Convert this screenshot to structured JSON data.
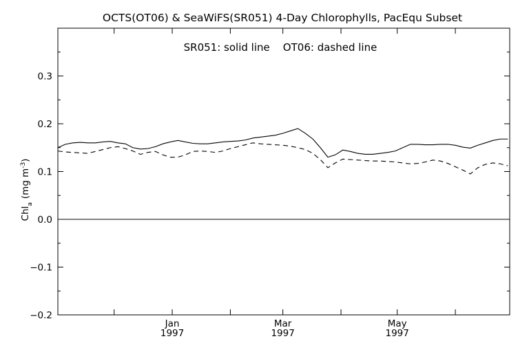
{
  "chart_data": {
    "type": "line",
    "title": "OCTS(OT06) & SeaWiFS(SR051) 4-Day Chlorophylls, PacEqu Subset",
    "legend_text": "SR051: solid line    OT06: dashed line",
    "legend_placement": "top-center",
    "ylabel_main": "Chl",
    "ylabel_sub": "a",
    "ylabel_units": "(mg m",
    "ylabel_units_sup": "-3",
    "ylabel_units_close": ")",
    "ylim": [
      -0.2,
      0.4
    ],
    "yticks": [
      {
        "value": -0.2,
        "label": "−0.2"
      },
      {
        "value": -0.1,
        "label": "−0.1"
      },
      {
        "value": 0.0,
        "label": "0.0"
      },
      {
        "value": 0.1,
        "label": "0.1"
      },
      {
        "value": 0.2,
        "label": "0.2"
      },
      {
        "value": 0.3,
        "label": "0.3"
      }
    ],
    "x_range": [
      "1996-11-01",
      "1997-06-30"
    ],
    "x_minor_ticks": [
      "1996-12-01",
      "1997-01-01",
      "1997-02-01",
      "1997-03-01",
      "1997-04-01",
      "1997-05-01",
      "1997-06-01"
    ],
    "x_labels": [
      {
        "date": "1997-01-01",
        "month": "Jan",
        "year": "1997"
      },
      {
        "date": "1997-03-01",
        "month": "Mar",
        "year": "1997"
      },
      {
        "date": "1997-05-01",
        "month": "May",
        "year": "1997"
      }
    ],
    "zero_line": true,
    "grid": false,
    "x": [
      "1996-11-01",
      "1996-11-05",
      "1996-11-09",
      "1996-11-13",
      "1996-11-17",
      "1996-11-21",
      "1996-11-25",
      "1996-11-29",
      "1996-12-03",
      "1996-12-07",
      "1996-12-11",
      "1996-12-15",
      "1996-12-19",
      "1996-12-23",
      "1996-12-27",
      "1996-12-31",
      "1997-01-04",
      "1997-01-08",
      "1997-01-12",
      "1997-01-16",
      "1997-01-20",
      "1997-01-24",
      "1997-01-28",
      "1997-02-01",
      "1997-02-05",
      "1997-02-09",
      "1997-02-13",
      "1997-02-17",
      "1997-02-21",
      "1997-02-25",
      "1997-03-01",
      "1997-03-05",
      "1997-03-09",
      "1997-03-13",
      "1997-03-17",
      "1997-03-21",
      "1997-03-25",
      "1997-03-29",
      "1997-04-02",
      "1997-04-06",
      "1997-04-10",
      "1997-04-14",
      "1997-04-18",
      "1997-04-22",
      "1997-04-26",
      "1997-04-30",
      "1997-05-04",
      "1997-05-08",
      "1997-05-12",
      "1997-05-16",
      "1997-05-20",
      "1997-05-24",
      "1997-05-28",
      "1997-06-01",
      "1997-06-05",
      "1997-06-09",
      "1997-06-13",
      "1997-06-17",
      "1997-06-21",
      "1997-06-25",
      "1997-06-29"
    ],
    "series": [
      {
        "style": "solid",
        "color": "#000000",
        "values": [
          0.15,
          0.157,
          0.16,
          0.161,
          0.16,
          0.16,
          0.162,
          0.163,
          0.16,
          0.158,
          0.15,
          0.147,
          0.148,
          0.152,
          0.158,
          0.162,
          0.165,
          0.162,
          0.159,
          0.158,
          0.158,
          0.16,
          0.162,
          0.163,
          0.164,
          0.166,
          0.17,
          0.172,
          0.174,
          0.176,
          0.18,
          0.185,
          0.19,
          0.18,
          0.168,
          0.15,
          0.13,
          0.135,
          0.145,
          0.142,
          0.138,
          0.136,
          0.136,
          0.138,
          0.14,
          0.143,
          0.15,
          0.157,
          0.157,
          0.156,
          0.156,
          0.157,
          0.157,
          0.155,
          0.151,
          0.149,
          0.155,
          0.16,
          0.165,
          0.168,
          0.168
        ]
      },
      {
        "style": "dashed",
        "color": "#000000",
        "values": [
          0.143,
          0.141,
          0.14,
          0.139,
          0.138,
          0.142,
          0.146,
          0.15,
          0.152,
          0.148,
          0.143,
          0.136,
          0.14,
          0.142,
          0.135,
          0.13,
          0.13,
          0.135,
          0.142,
          0.143,
          0.142,
          0.14,
          0.143,
          0.148,
          0.152,
          0.156,
          0.16,
          0.158,
          0.157,
          0.156,
          0.155,
          0.153,
          0.15,
          0.146,
          0.138,
          0.125,
          0.108,
          0.118,
          0.126,
          0.125,
          0.124,
          0.123,
          0.122,
          0.122,
          0.121,
          0.12,
          0.118,
          0.116,
          0.117,
          0.12,
          0.124,
          0.122,
          0.117,
          0.11,
          0.103,
          0.095,
          0.108,
          0.115,
          0.118,
          0.116,
          0.112
        ]
      }
    ]
  }
}
